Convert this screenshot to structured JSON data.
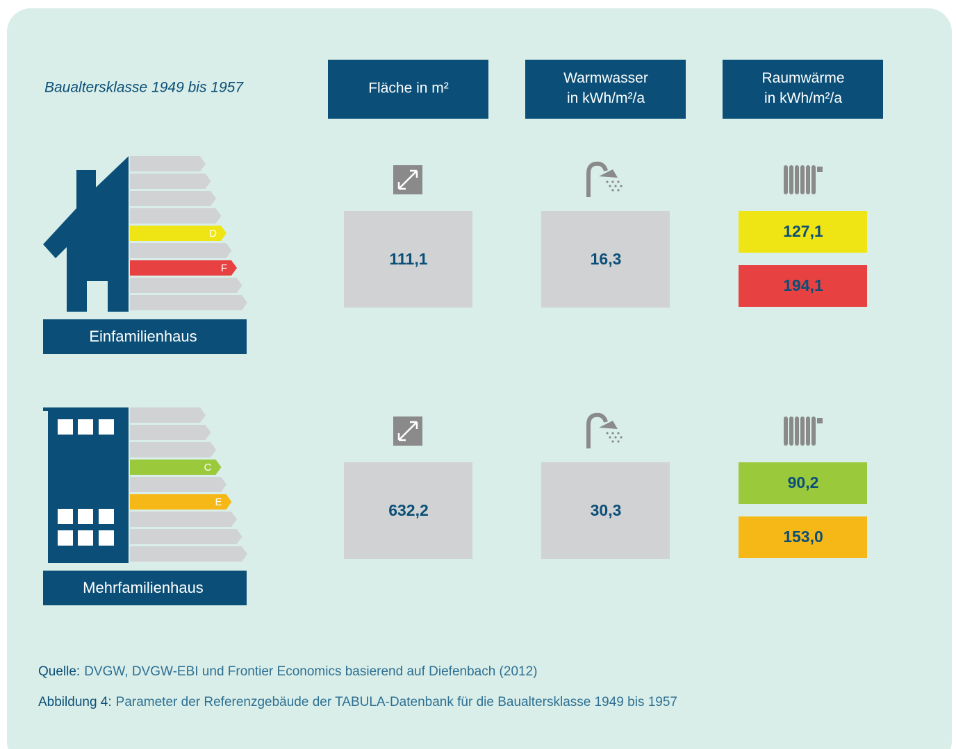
{
  "subtitle": "Baualtersklasse 1949 bis 1957",
  "columns": [
    [
      "Fläche in m²"
    ],
    [
      "Warmwasser",
      "in kWh/m²/a"
    ],
    [
      "Raumwärme",
      "in kWh/m²/a"
    ]
  ],
  "buildings": [
    {
      "label": "Einfamilienhaus",
      "area": "111,1",
      "warmwater": "16,3",
      "heating": [
        {
          "class": "D",
          "value": "127,1",
          "color": "#f0e514"
        },
        {
          "class": "F",
          "value": "194,1",
          "color": "#e84142"
        }
      ]
    },
    {
      "label": "Mehrfamilienhaus",
      "area": "632,2",
      "warmwater": "30,3",
      "heating": [
        {
          "class": "C",
          "value": "90,2",
          "color": "#9bc93c"
        },
        {
          "class": "E",
          "value": "153,0",
          "color": "#f6b817"
        }
      ]
    }
  ],
  "source": {
    "label": "Quelle:",
    "text": "DVGW, DVGW-EBI und Frontier Economics basierend auf Diefenbach (2012)"
  },
  "caption": {
    "label": "Abbildung 4:",
    "text": "Parameter der Referenzgebäude der TABULA-Datenbank für die Baualtersklasse 1949 bis 1957"
  }
}
